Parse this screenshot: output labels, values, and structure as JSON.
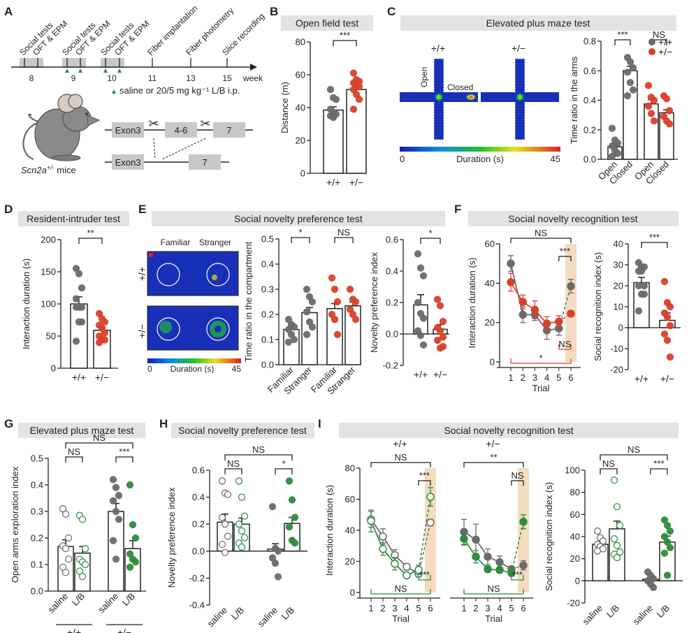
{
  "panels": {
    "A": {
      "label": "A",
      "timeline": {
        "weeks": [
          "8",
          "9",
          "10",
          "11",
          "13",
          "15"
        ],
        "unit": "week",
        "events": [
          "Social tests",
          "OFT & EPM",
          "Social tests",
          "OFT & EPM",
          "Social tests",
          "OFT & EPM",
          "Fiber implantation",
          "Fiber photometry",
          "Slice recording"
        ],
        "injection_note": "saline or 20/5 mg kg⁻¹ L/B i.p."
      },
      "mouse_caption": "Scn2a",
      "mouse_caption_sup": "+/-",
      "mouse_caption_suffix": " mice",
      "gene": {
        "wt_exons": [
          "Exon3",
          "4-6",
          "7"
        ],
        "ko_exons": [
          "Exon3",
          "7"
        ]
      }
    },
    "B": {
      "label": "B",
      "title": "Open field test"
    },
    "C": {
      "label": "C",
      "title": "Elevated plus maze test",
      "heatmap_labels": {
        "wt": "+/+",
        "het": "+/−",
        "open": "Open",
        "closed": "Closed"
      },
      "colorbar": {
        "min": "0",
        "max": "45",
        "label": "Duration (s)"
      }
    },
    "D": {
      "label": "D",
      "title": "Resident-intruder test"
    },
    "E": {
      "label": "E",
      "title": "Social novelty preference test",
      "heatmap_labels": {
        "familiar": "Familiar",
        "stranger": "Stranger",
        "wt": "+/+",
        "het": "+/−"
      },
      "colorbar": {
        "min": "0",
        "max": "45",
        "label": "Duration (s)"
      }
    },
    "F": {
      "label": "F",
      "title": "Social novelty recognition test"
    },
    "G": {
      "label": "G",
      "title": "Elevated plus maze test"
    },
    "H": {
      "label": "H",
      "title": "Social novelty preference test"
    },
    "I": {
      "label": "I",
      "title": "Social novelty recognition test"
    }
  },
  "colors": {
    "wt": "#6b6b6b",
    "het": "#d9412b",
    "lb": "#2e8b3a",
    "title_bg": "#e3e3e3",
    "shade": "#f3dcc0",
    "trial6": "#d99a2b"
  },
  "chart_data": [
    {
      "id": "B",
      "type": "bar",
      "ylabel": "Distance (m)",
      "ylim": [
        0,
        80
      ],
      "yticks": [
        0,
        20,
        40,
        60,
        80
      ],
      "categories": [
        "+/+",
        "+/−"
      ],
      "series": [
        {
          "name": "+/+",
          "mean": 38.5,
          "sem": 2,
          "points": [
            51,
            46,
            45,
            39,
            37,
            36,
            35,
            34
          ]
        },
        {
          "name": "+/−",
          "mean": 51,
          "sem": 2,
          "points": [
            61,
            57,
            56,
            55,
            54,
            53,
            51,
            48,
            45,
            39
          ]
        }
      ],
      "sig": [
        {
          "text": "***",
          "between": [
            0,
            1
          ]
        }
      ]
    },
    {
      "id": "C",
      "type": "bar",
      "ylabel": "Time ratio in the arms",
      "ylim": [
        0,
        0.8
      ],
      "yticks": [
        "0.0",
        "0.2",
        "0.4",
        "0.6",
        "0.8"
      ],
      "categories": [
        "Open",
        "Closed",
        "Open",
        "Closed"
      ],
      "legend": [
        "+/+",
        "+/−"
      ],
      "legend_position": "top-right",
      "series": [
        {
          "name": "+/+ Open",
          "mean": 0.085,
          "sem": 0.02,
          "points": [
            0.21,
            0.13,
            0.11,
            0.09,
            0.06,
            0.04,
            0.02
          ]
        },
        {
          "name": "+/+ Closed",
          "mean": 0.6,
          "sem": 0.03,
          "points": [
            0.69,
            0.66,
            0.62,
            0.59,
            0.52,
            0.47,
            0.43
          ]
        },
        {
          "name": "+/− Open",
          "mean": 0.375,
          "sem": 0.03,
          "points": [
            0.5,
            0.42,
            0.4,
            0.36,
            0.31,
            0.26
          ]
        },
        {
          "name": "+/− Closed",
          "mean": 0.315,
          "sem": 0.02,
          "points": [
            0.43,
            0.41,
            0.33,
            0.29,
            0.26,
            0.24
          ]
        }
      ],
      "sig": [
        {
          "text": "***",
          "between": [
            0,
            1
          ]
        },
        {
          "text": "NS",
          "between": [
            2,
            3
          ]
        }
      ]
    },
    {
      "id": "D",
      "type": "bar",
      "ylabel": "Interaction duration (s)",
      "ylim": [
        0,
        200
      ],
      "yticks": [
        0,
        50,
        100,
        150,
        200
      ],
      "categories": [
        "+/+",
        "+/−"
      ],
      "series": [
        {
          "name": "+/+",
          "mean": 100,
          "sem": 11,
          "points": [
            155,
            147,
            125,
            108,
            95,
            95,
            95,
            72,
            72,
            42
          ]
        },
        {
          "name": "+/−",
          "mean": 59,
          "sem": 5,
          "points": [
            85,
            77,
            72,
            67,
            62,
            55,
            50,
            45,
            44,
            40
          ]
        }
      ],
      "sig": [
        {
          "text": "**",
          "between": [
            0,
            1
          ]
        }
      ]
    },
    {
      "id": "E1",
      "type": "bar",
      "ylabel": "Time ratio in the compartment",
      "ylim": [
        0,
        0.5
      ],
      "yticks": [
        "0.0",
        "0.1",
        "0.2",
        "0.3",
        "0.4",
        "0.5"
      ],
      "categories": [
        "Familiar",
        "Stranger",
        "Familiar",
        "Stranger"
      ],
      "series": [
        {
          "name": "+/+ Familiar",
          "mean": 0.14,
          "sem": 0.012,
          "points": [
            0.18,
            0.16,
            0.15,
            0.14,
            0.12,
            0.1,
            0.09
          ]
        },
        {
          "name": "+/+ Stranger",
          "mean": 0.207,
          "sem": 0.02,
          "points": [
            0.3,
            0.27,
            0.25,
            0.21,
            0.17,
            0.15,
            0.12
          ]
        },
        {
          "name": "+/− Familiar",
          "mean": 0.223,
          "sem": 0.02,
          "points": [
            0.345,
            0.3,
            0.25,
            0.2,
            0.18,
            0.12
          ]
        },
        {
          "name": "+/− Stranger",
          "mean": 0.234,
          "sem": 0.015,
          "points": [
            0.3,
            0.26,
            0.25,
            0.22,
            0.2,
            0.18
          ]
        }
      ],
      "sig": [
        {
          "text": "*",
          "between": [
            0,
            1
          ]
        },
        {
          "text": "NS",
          "between": [
            2,
            3
          ]
        }
      ]
    },
    {
      "id": "E2",
      "type": "bar",
      "ylabel": "Novelty preference index",
      "ylim": [
        -0.2,
        0.6
      ],
      "yticks": [
        "-0.2",
        "0.0",
        "0.2",
        "0.4",
        "0.6"
      ],
      "categories": [
        "+/+",
        "+/−"
      ],
      "series": [
        {
          "name": "+/+",
          "mean": 0.185,
          "sem": 0.065,
          "points": [
            0.51,
            0.42,
            0.37,
            0.2,
            0.13,
            0.1,
            0.02,
            -0.01,
            -0.07
          ]
        },
        {
          "name": "+/−",
          "mean": 0.03,
          "sem": 0.03,
          "points": [
            0.22,
            0.18,
            0.08,
            0.04,
            0.02,
            -0.02,
            -0.04,
            -0.09,
            -0.08
          ]
        }
      ],
      "sig": [
        {
          "text": "*",
          "between": [
            0,
            1
          ]
        }
      ]
    },
    {
      "id": "F1",
      "type": "line",
      "xlabel": "Trial",
      "ylabel": "Interaction duration (s)",
      "ylim": [
        0,
        60
      ],
      "yticks": [
        0,
        20,
        40,
        60
      ],
      "x": [
        1,
        2,
        3,
        4,
        5,
        6
      ],
      "series": [
        {
          "name": "+/+",
          "values": [
            50,
            24,
            24,
            16,
            17,
            38.5
          ],
          "sem": [
            4,
            4,
            3,
            4.5,
            3.5,
            3.5
          ]
        },
        {
          "name": "+/−",
          "values": [
            40.5,
            30.5,
            26.5,
            19.5,
            20.5,
            24.5
          ],
          "sem": [
            4.5,
            3.5,
            4.5,
            3.5,
            3,
            1.5
          ]
        }
      ],
      "annotations": [
        {
          "text": "NS",
          "span": [
            1,
            6
          ],
          "pos": "top"
        },
        {
          "text": "***",
          "span": [
            5,
            6
          ],
          "pos": "top"
        },
        {
          "text": "NS",
          "span": [
            5,
            6
          ],
          "pos": "bottom"
        },
        {
          "text": "*",
          "span": [
            1,
            6
          ],
          "pos": "bottom"
        }
      ]
    },
    {
      "id": "F2",
      "type": "bar",
      "ylabel": "Social recognition index (s)",
      "ylim": [
        -20,
        40
      ],
      "yticks": [
        -20,
        -10,
        0,
        10,
        20,
        30,
        40
      ],
      "categories": [
        "+/+",
        "+/−"
      ],
      "series": [
        {
          "name": "+/+",
          "mean": 21.5,
          "sem": 2.5,
          "points": [
            31,
            29,
            29,
            27,
            27,
            20,
            20,
            16,
            16,
            8
          ]
        },
        {
          "name": "+/−",
          "mean": 3.5,
          "sem": 3.5,
          "points": [
            22,
            12,
            10,
            7,
            5,
            1,
            -3,
            -6,
            -14
          ]
        }
      ],
      "sig": [
        {
          "text": "***",
          "between": [
            0,
            1
          ]
        }
      ]
    },
    {
      "id": "G",
      "type": "bar",
      "ylabel": "Open arms exploration index",
      "ylim": [
        0,
        0.5
      ],
      "yticks": [
        "0.0",
        "0.1",
        "0.2",
        "0.3",
        "0.4",
        "0.5"
      ],
      "categories": [
        "saline",
        "L/B",
        "saline",
        "L/B"
      ],
      "groups": [
        "+/+",
        "+/−"
      ],
      "series": [
        {
          "name": "+/+ saline",
          "mean": 0.168,
          "sem": 0.025,
          "points": [
            0.31,
            0.29,
            0.2,
            0.17,
            0.16,
            0.12,
            0.09,
            0.07
          ]
        },
        {
          "name": "+/+ L/B",
          "mean": 0.143,
          "sem": 0.025,
          "points": [
            0.285,
            0.27,
            0.16,
            0.12,
            0.11,
            0.1,
            0.075,
            0.055
          ]
        },
        {
          "name": "+/− saline",
          "mean": 0.3,
          "sem": 0.03,
          "points": [
            0.42,
            0.39,
            0.36,
            0.34,
            0.3,
            0.27,
            0.19,
            0.12
          ]
        },
        {
          "name": "+/− L/B",
          "mean": 0.16,
          "sem": 0.03,
          "points": [
            0.4,
            0.25,
            0.2,
            0.14,
            0.12,
            0.11,
            0.09
          ]
        }
      ],
      "sig": [
        {
          "text": "NS",
          "between": [
            0,
            1
          ]
        },
        {
          "text": "***",
          "between": [
            2,
            3
          ]
        },
        {
          "text": "NS",
          "between": [
            0,
            3
          ],
          "level": 2
        }
      ]
    },
    {
      "id": "H",
      "type": "bar",
      "ylabel": "Novelty preference index",
      "ylim": [
        -0.4,
        0.6
      ],
      "yticks": [
        "-0.4",
        "-0.2",
        "0.0",
        "0.2",
        "0.4",
        "0.6"
      ],
      "categories": [
        "saline",
        "L/B",
        "saline",
        "L/B"
      ],
      "groups": [
        "+/+",
        "+/−"
      ],
      "series": [
        {
          "name": "+/+ saline",
          "mean": 0.215,
          "sem": 0.06,
          "points": [
            0.52,
            0.43,
            0.42,
            0.25,
            0.2,
            0.11,
            0.05,
            -0.01
          ]
        },
        {
          "name": "+/+ L/B",
          "mean": 0.2,
          "sem": 0.045,
          "points": [
            0.52,
            0.4,
            0.26,
            0.2,
            0.15,
            0.1,
            0.06,
            0.03
          ]
        },
        {
          "name": "+/− saline",
          "mean": 0.015,
          "sem": 0.04,
          "points": [
            0.33,
            0.02,
            0.0,
            -0.05,
            -0.09,
            -0.19
          ]
        },
        {
          "name": "+/− L/B",
          "mean": 0.205,
          "sem": 0.045,
          "points": [
            0.52,
            0.38,
            0.25,
            0.18,
            0.08,
            0.06
          ]
        }
      ],
      "sig": [
        {
          "text": "NS",
          "between": [
            0,
            1
          ]
        },
        {
          "text": "*",
          "between": [
            2,
            3
          ]
        },
        {
          "text": "NS",
          "between": [
            0,
            3
          ],
          "level": 2
        }
      ]
    },
    {
      "id": "I1",
      "type": "line",
      "subtitle": "+/+",
      "xlabel": "Trial",
      "ylabel": "Interaction duration (s)",
      "ylim": [
        0,
        80
      ],
      "yticks": [
        0,
        20,
        40,
        60,
        80
      ],
      "x": [
        1,
        2,
        3,
        4,
        5,
        6
      ],
      "series": [
        {
          "name": "saline",
          "values": [
            47,
            36,
            24,
            16.5,
            12,
            45
          ],
          "sem": [
            5,
            5,
            3.5,
            2,
            2,
            2
          ],
          "hollow": true
        },
        {
          "name": "L/B",
          "values": [
            46,
            28,
            18.5,
            11,
            14.5,
            61.5
          ],
          "sem": [
            7,
            4,
            4,
            1.5,
            3,
            6
          ],
          "hollow": true
        }
      ],
      "annotations": [
        {
          "text": "NS",
          "span": [
            1,
            6
          ],
          "pos": "top"
        },
        {
          "text": "***",
          "span": [
            5,
            6
          ],
          "pos": "top"
        },
        {
          "text": "***",
          "span": [
            5,
            6
          ],
          "pos": "bottom"
        },
        {
          "text": "NS",
          "span": [
            1,
            6
          ],
          "pos": "bottom"
        }
      ]
    },
    {
      "id": "I2",
      "type": "line",
      "subtitle": "+/−",
      "xlabel": "Trial",
      "ylim": [
        0,
        80
      ],
      "x": [
        1,
        2,
        3,
        4,
        5,
        6
      ],
      "series": [
        {
          "name": "saline",
          "values": [
            39,
            34,
            23,
            19.5,
            15,
            17.5
          ],
          "sem": [
            8,
            10,
            5,
            4,
            2,
            3
          ]
        },
        {
          "name": "L/B",
          "values": [
            34.5,
            23,
            15,
            14.5,
            12.5,
            45.5
          ],
          "sem": [
            4,
            4,
            2,
            2,
            2,
            4.5
          ]
        }
      ],
      "annotations": [
        {
          "text": "**",
          "span": [
            1,
            6
          ],
          "pos": "top"
        },
        {
          "text": "NS",
          "span": [
            5,
            6
          ],
          "pos": "top"
        },
        {
          "text": "***",
          "span": [
            5,
            6
          ],
          "pos": "bottom"
        },
        {
          "text": "NS",
          "span": [
            1,
            6
          ],
          "pos": "bottom"
        }
      ]
    },
    {
      "id": "I3",
      "type": "bar",
      "ylabel": "Social recognition index (s)",
      "ylim": [
        -20,
        100
      ],
      "yticks": [
        -20,
        0,
        20,
        40,
        60,
        80,
        100
      ],
      "categories": [
        "saline",
        "L/B",
        "saline",
        "L/B"
      ],
      "groups": [
        "+/+",
        "+/−"
      ],
      "series": [
        {
          "name": "+/+ saline",
          "mean": 33,
          "sem": 2.5,
          "points": [
            45,
            39,
            36,
            33,
            31,
            29,
            27
          ]
        },
        {
          "name": "+/+ L/B",
          "mean": 47,
          "sem": 7,
          "points": [
            91,
            67,
            50,
            38,
            32,
            26,
            24,
            21
          ]
        },
        {
          "name": "+/− saline",
          "mean": 1.5,
          "sem": 1.5,
          "points": [
            8,
            5,
            2,
            0,
            -3,
            -6
          ]
        },
        {
          "name": "+/− L/B",
          "mean": 35,
          "sem": 5.5,
          "points": [
            55,
            50,
            45,
            40,
            35,
            30,
            25,
            5
          ]
        }
      ],
      "sig": [
        {
          "text": "NS",
          "between": [
            0,
            1
          ]
        },
        {
          "text": "***",
          "between": [
            2,
            3
          ]
        },
        {
          "text": "NS",
          "between": [
            0,
            3
          ],
          "level": 2
        }
      ]
    }
  ]
}
